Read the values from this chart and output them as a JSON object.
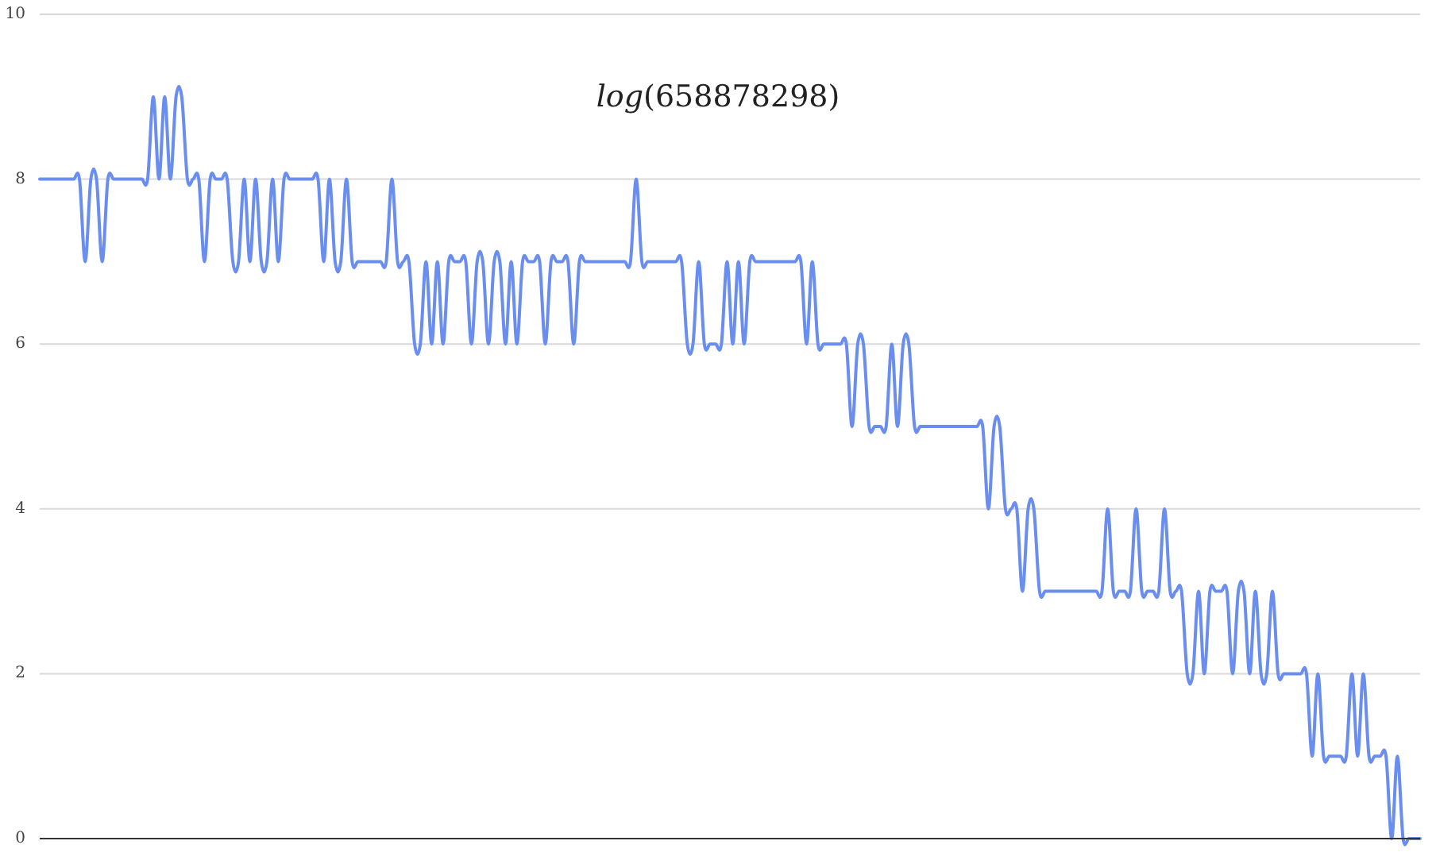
{
  "chart_data": {
    "type": "line",
    "title": "log(658878298)",
    "categories": [
      null,
      null,
      null,
      null,
      null,
      null,
      null,
      null,
      null,
      null,
      null,
      null,
      null,
      null,
      null,
      null,
      null,
      null,
      null,
      null,
      null,
      null,
      null,
      null,
      null,
      null,
      null,
      null,
      null,
      null,
      null,
      null,
      null,
      null,
      null,
      null,
      null,
      null,
      null,
      null,
      null,
      null,
      null,
      null,
      null,
      null,
      null,
      null,
      null,
      null,
      null,
      null,
      null,
      null,
      null,
      null,
      null,
      null,
      null,
      null,
      null,
      null,
      null,
      null,
      null,
      null,
      null,
      null,
      null,
      null,
      null,
      null,
      null,
      null,
      null,
      null,
      null,
      null,
      null,
      null,
      null,
      null,
      null,
      null,
      null,
      null,
      null,
      null,
      null,
      null,
      null,
      null,
      null,
      null,
      null,
      null,
      null,
      null,
      null,
      null,
      null,
      null,
      null,
      null,
      null,
      null,
      null,
      null,
      null,
      null,
      null,
      null,
      null,
      null,
      null,
      null,
      null,
      null,
      null,
      null,
      null,
      null,
      null,
      null,
      null,
      null,
      null,
      null,
      null,
      null,
      null,
      null,
      null,
      null,
      null,
      null,
      null,
      null,
      null,
      null,
      null,
      null,
      null,
      null,
      null,
      null,
      null,
      null,
      null,
      null,
      null,
      null,
      null,
      null,
      null,
      null,
      null,
      null,
      null,
      null,
      null,
      null,
      null,
      null,
      null,
      null,
      null,
      null,
      null,
      null,
      null,
      null,
      null,
      null,
      null,
      null,
      null,
      null,
      null,
      null,
      null,
      null,
      null,
      null,
      null,
      null,
      null,
      null,
      null,
      null,
      null,
      null,
      null,
      null,
      null,
      null,
      null,
      null,
      null,
      null,
      null,
      null,
      null,
      null,
      null,
      null,
      null,
      null,
      null,
      null,
      null,
      null,
      null,
      null,
      null,
      null,
      null,
      null,
      null,
      null,
      null,
      null,
      null,
      null,
      null,
      null,
      null,
      null,
      null,
      null,
      null,
      null,
      null,
      null,
      null,
      null,
      null,
      null,
      null,
      null,
      null,
      null,
      null,
      null
    ],
    "values": [
      8,
      8,
      8,
      8,
      8,
      8,
      8,
      8,
      7,
      8,
      8,
      7,
      8,
      8,
      8,
      8,
      8,
      8,
      8,
      8,
      9,
      8,
      9,
      8,
      9,
      9,
      8,
      8,
      8,
      7,
      8,
      8,
      8,
      8,
      7,
      7,
      8,
      7,
      8,
      7,
      7,
      8,
      7,
      8,
      8,
      8,
      8,
      8,
      8,
      8,
      7,
      8,
      7,
      7,
      8,
      7,
      7,
      7,
      7,
      7,
      7,
      7,
      8,
      7,
      7,
      7,
      6,
      6,
      7,
      6,
      7,
      6,
      7,
      7,
      7,
      7,
      6,
      7,
      7,
      6,
      7,
      7,
      6,
      7,
      6,
      7,
      7,
      7,
      7,
      6,
      7,
      7,
      7,
      7,
      6,
      7,
      7,
      7,
      7,
      7,
      7,
      7,
      7,
      7,
      7,
      8,
      7,
      7,
      7,
      7,
      7,
      7,
      7,
      7,
      6,
      6,
      7,
      6,
      6,
      6,
      6,
      7,
      6,
      7,
      6,
      7,
      7,
      7,
      7,
      7,
      7,
      7,
      7,
      7,
      7,
      6,
      7,
      6,
      6,
      6,
      6,
      6,
      6,
      5,
      6,
      6,
      5,
      5,
      5,
      5,
      6,
      5,
      6,
      6,
      5,
      5,
      5,
      5,
      5,
      5,
      5,
      5,
      5,
      5,
      5,
      5,
      5,
      4,
      5,
      5,
      4,
      4,
      4,
      3,
      4,
      4,
      3,
      3,
      3,
      3,
      3,
      3,
      3,
      3,
      3,
      3,
      3,
      3,
      4,
      3,
      3,
      3,
      3,
      4,
      3,
      3,
      3,
      3,
      4,
      3,
      3,
      3,
      2,
      2,
      3,
      2,
      3,
      3,
      3,
      3,
      2,
      3,
      3,
      2,
      3,
      2,
      2,
      3,
      2,
      2,
      2,
      2,
      2,
      2,
      1,
      2,
      1,
      1,
      1,
      1,
      1,
      2,
      1,
      2,
      1,
      1,
      1,
      1,
      0,
      1,
      0,
      0,
      0,
      0
    ],
    "color": "#6a8ef0",
    "ylim": [
      0,
      10
    ],
    "yticks": [
      0,
      2,
      4,
      6,
      8,
      10
    ],
    "grid": "y",
    "tick_labels": "y"
  }
}
